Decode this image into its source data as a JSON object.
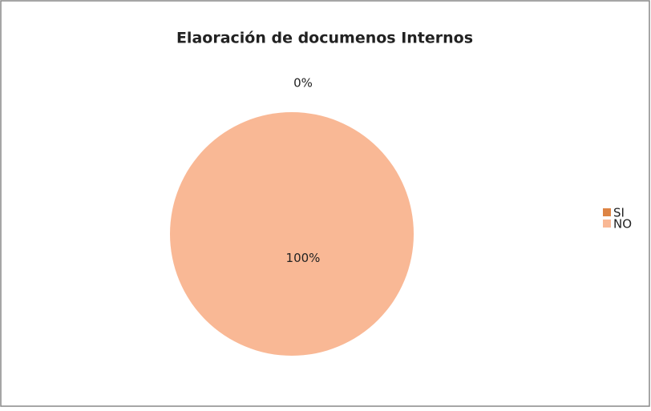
{
  "chart_data": {
    "type": "pie",
    "title": "Elaoración de documenos Internos",
    "categories": [
      "SI",
      "NO"
    ],
    "values": [
      0,
      100
    ],
    "value_labels": [
      "0%",
      "100%"
    ],
    "colors": [
      "#dd8444",
      "#f9b895"
    ],
    "legend": "right"
  }
}
